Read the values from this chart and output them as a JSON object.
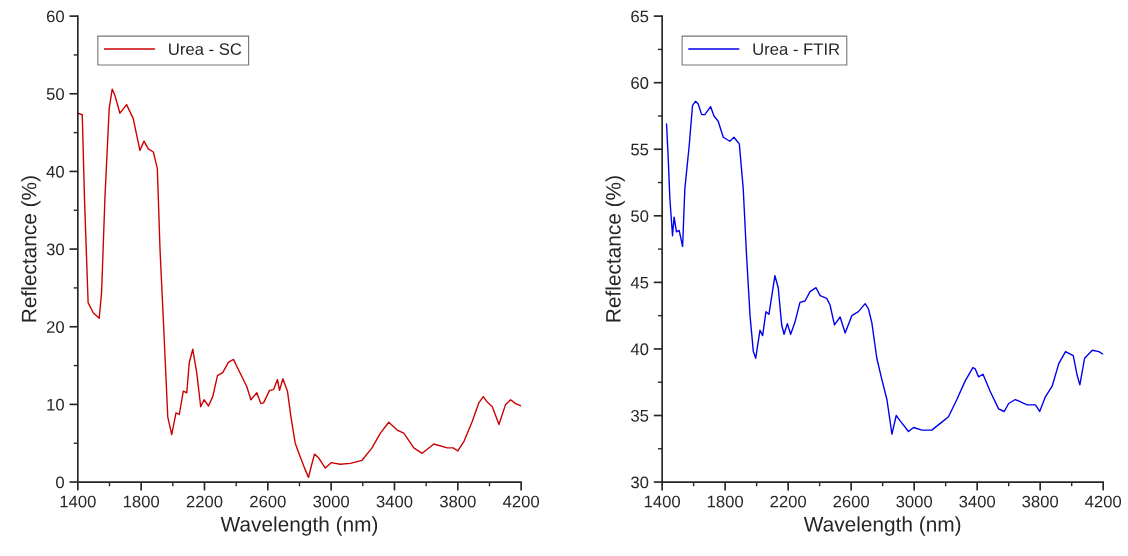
{
  "chart_data": [
    {
      "type": "line",
      "xlabel": "Wavelength (nm)",
      "ylabel": "Reflectance (%)",
      "xlim": [
        1400,
        4200
      ],
      "xticks": [
        1400,
        1800,
        2200,
        2600,
        3000,
        3400,
        3800,
        4200
      ],
      "ylim": [
        0,
        60
      ],
      "yticks": [
        0,
        10,
        20,
        30,
        40,
        50,
        60
      ],
      "legend": "top left",
      "grid": false,
      "marker": "none",
      "line_style": "solid",
      "series": [
        {
          "name": "Urea - SC",
          "color": "#cc0000",
          "x": [
            1400,
            1428,
            1442,
            1465,
            1497,
            1535,
            1550,
            1571,
            1598,
            1617,
            1634,
            1666,
            1708,
            1750,
            1792,
            1818,
            1845,
            1877,
            1902,
            1919,
            1944,
            1968,
            1993,
            2020,
            2041,
            2066,
            2088,
            2104,
            2126,
            2151,
            2176,
            2197,
            2225,
            2252,
            2282,
            2315,
            2351,
            2383,
            2414,
            2467,
            2493,
            2531,
            2556,
            2573,
            2611,
            2636,
            2661,
            2674,
            2695,
            2724,
            2746,
            2773,
            2804,
            2836,
            2857,
            2874,
            2895,
            2921,
            2963,
            3000,
            3058,
            3121,
            3195,
            3258,
            3311,
            3364,
            3417,
            3459,
            3522,
            3575,
            3649,
            3733,
            3771,
            3800,
            3838,
            3891,
            3933,
            3961,
            3986,
            4018,
            4060,
            4102,
            4134,
            4165,
            4200
          ],
          "values": [
            47.5,
            47.3,
            36.5,
            23.1,
            21.8,
            21.1,
            24.4,
            36.5,
            48.1,
            50.6,
            49.8,
            47.5,
            48.6,
            46.8,
            42.7,
            43.9,
            42.9,
            42.5,
            40.4,
            30.0,
            19.2,
            8.4,
            6.1,
            8.9,
            8.7,
            11.7,
            11.5,
            15.4,
            17.1,
            14.1,
            9.7,
            10.6,
            9.8,
            11.0,
            13.7,
            14.1,
            15.4,
            15.8,
            14.5,
            12.3,
            10.6,
            11.5,
            10.1,
            10.2,
            11.8,
            11.9,
            13.2,
            11.8,
            13.3,
            11.7,
            8.4,
            5.0,
            3.3,
            1.6,
            0.6,
            2.0,
            3.6,
            3.1,
            1.8,
            2.5,
            2.3,
            2.4,
            2.8,
            4.4,
            6.3,
            7.7,
            6.7,
            6.3,
            4.4,
            3.7,
            4.9,
            4.4,
            4.4,
            4.0,
            5.2,
            7.8,
            10.2,
            11.0,
            10.3,
            9.7,
            7.4,
            10.0,
            10.6,
            10.1,
            9.8
          ]
        }
      ]
    },
    {
      "type": "line",
      "xlabel": "Wavelength (nm)",
      "ylabel": "Reflectance (%)",
      "xlim": [
        1400,
        4200
      ],
      "xticks": [
        1400,
        1800,
        2200,
        2600,
        3000,
        3400,
        3800,
        4200
      ],
      "ylim": [
        30,
        65
      ],
      "yticks": [
        30,
        35,
        40,
        45,
        50,
        55,
        60,
        65
      ],
      "legend": "top left",
      "grid": false,
      "marker": "none",
      "line_style": "solid",
      "series": [
        {
          "name": "Urea - FTIR",
          "color": "#0000ee",
          "x": [
            1428,
            1438,
            1449,
            1466,
            1476,
            1491,
            1508,
            1530,
            1544,
            1572,
            1593,
            1612,
            1629,
            1651,
            1671,
            1708,
            1729,
            1756,
            1788,
            1830,
            1856,
            1890,
            1915,
            1936,
            1958,
            1979,
            1994,
            2021,
            2038,
            2059,
            2078,
            2116,
            2137,
            2159,
            2174,
            2195,
            2216,
            2243,
            2275,
            2307,
            2339,
            2377,
            2403,
            2445,
            2466,
            2494,
            2530,
            2562,
            2604,
            2646,
            2689,
            2710,
            2731,
            2763,
            2795,
            2827,
            2859,
            2886,
            2911,
            2964,
            2996,
            3049,
            3112,
            3176,
            3218,
            3271,
            3324,
            3373,
            3388,
            3409,
            3437,
            3483,
            3536,
            3572,
            3600,
            3642,
            3717,
            3770,
            3797,
            3833,
            3876,
            3918,
            3961,
            4010,
            4035,
            4052,
            4082,
            4131,
            4173,
            4200
          ],
          "values": [
            56.9,
            54.5,
            51.3,
            48.5,
            49.9,
            48.8,
            48.9,
            47.7,
            52.0,
            55.3,
            58.3,
            58.6,
            58.4,
            57.6,
            57.6,
            58.2,
            57.5,
            57.1,
            55.9,
            55.6,
            55.9,
            55.4,
            52.0,
            47.0,
            42.5,
            39.8,
            39.3,
            41.4,
            41.0,
            42.8,
            42.6,
            45.5,
            44.6,
            41.8,
            41.1,
            41.9,
            41.1,
            42.0,
            43.5,
            43.6,
            44.3,
            44.6,
            44.0,
            43.8,
            43.3,
            41.8,
            42.4,
            41.2,
            42.5,
            42.8,
            43.4,
            43.0,
            42.0,
            39.3,
            37.7,
            36.2,
            33.6,
            35.0,
            34.6,
            33.8,
            34.1,
            33.9,
            33.9,
            34.5,
            34.9,
            36.2,
            37.6,
            38.6,
            38.5,
            37.9,
            38.1,
            36.8,
            35.5,
            35.3,
            35.9,
            36.2,
            35.8,
            35.8,
            35.3,
            36.4,
            37.2,
            38.9,
            39.8,
            39.5,
            38.0,
            37.3,
            39.3,
            39.9,
            39.8,
            39.6
          ]
        }
      ]
    }
  ]
}
